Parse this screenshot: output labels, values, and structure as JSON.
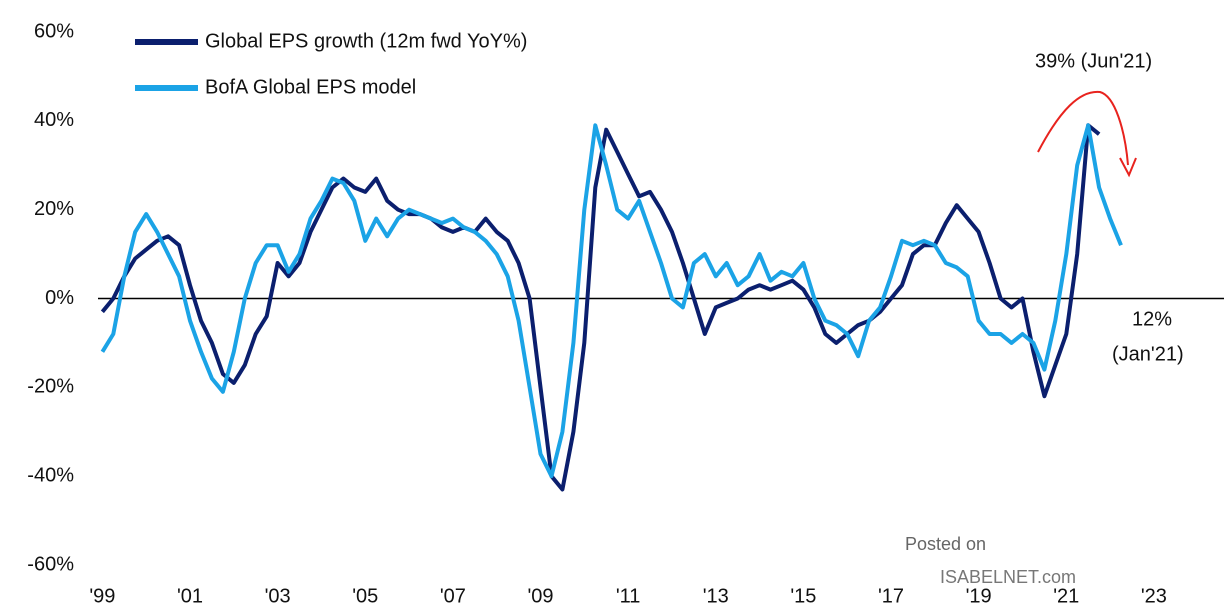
{
  "chart_data": {
    "type": "line",
    "x": [
      1999,
      1999.25,
      1999.5,
      1999.75,
      2000,
      2000.25,
      2000.5,
      2000.75,
      2001,
      2001.25,
      2001.5,
      2001.75,
      2002,
      2002.25,
      2002.5,
      2002.75,
      2003,
      2003.25,
      2003.5,
      2003.75,
      2004,
      2004.25,
      2004.5,
      2004.75,
      2005,
      2005.25,
      2005.5,
      2005.75,
      2006,
      2006.25,
      2006.5,
      2006.75,
      2007,
      2007.25,
      2007.5,
      2007.75,
      2008,
      2008.25,
      2008.5,
      2008.75,
      2009,
      2009.25,
      2009.5,
      2009.75,
      2010,
      2010.25,
      2010.5,
      2010.75,
      2011,
      2011.25,
      2011.5,
      2011.75,
      2012,
      2012.25,
      2012.5,
      2012.75,
      2013,
      2013.25,
      2013.5,
      2013.75,
      2014,
      2014.25,
      2014.5,
      2014.75,
      2015,
      2015.25,
      2015.5,
      2015.75,
      2016,
      2016.25,
      2016.5,
      2016.75,
      2017,
      2017.25,
      2017.5,
      2017.75,
      2018,
      2018.25,
      2018.5,
      2018.75,
      2019,
      2019.25,
      2019.5,
      2019.75,
      2020,
      2020.25,
      2020.5,
      2020.75,
      2021,
      2021.25,
      2021.5,
      2021.75,
      2022,
      2022.25
    ],
    "series": [
      {
        "name": "Global EPS growth (12m fwd YoY%)",
        "color": "#0b1f6e",
        "values": [
          -3,
          0,
          5,
          9,
          11,
          13,
          14,
          12,
          3,
          -5,
          -10,
          -17,
          -19,
          -15,
          -8,
          -4,
          8,
          5,
          8,
          15,
          20,
          25,
          27,
          25,
          24,
          27,
          22,
          20,
          19,
          19,
          18,
          16,
          15,
          16,
          15,
          18,
          15,
          13,
          8,
          0,
          -20,
          -40,
          -43,
          -30,
          -10,
          25,
          38,
          33,
          28,
          23,
          24,
          20,
          15,
          8,
          0,
          -8,
          -2,
          -1,
          0,
          2,
          3,
          2,
          3,
          4,
          2,
          -2,
          -8,
          -10,
          -8,
          -6,
          -5,
          -3,
          0,
          3,
          10,
          12,
          12,
          17,
          21,
          18,
          15,
          8,
          0,
          -2,
          0,
          -12,
          -22,
          -15,
          -8,
          10,
          39,
          37,
          null,
          null
        ]
      },
      {
        "name": "BofA Global EPS model",
        "color": "#1ba3e6",
        "values": [
          -12,
          -8,
          5,
          15,
          19,
          15,
          10,
          5,
          -5,
          -12,
          -18,
          -21,
          -12,
          0,
          8,
          12,
          12,
          6,
          10,
          18,
          22,
          27,
          26,
          22,
          13,
          18,
          14,
          18,
          20,
          19,
          18,
          17,
          18,
          16,
          15,
          13,
          10,
          5,
          -5,
          -20,
          -35,
          -40,
          -30,
          -10,
          20,
          39,
          30,
          20,
          18,
          22,
          15,
          8,
          0,
          -2,
          8,
          10,
          5,
          8,
          3,
          5,
          10,
          4,
          6,
          5,
          8,
          0,
          -5,
          -6,
          -8,
          -13,
          -5,
          -2,
          5,
          13,
          12,
          13,
          12,
          8,
          7,
          5,
          -5,
          -8,
          -8,
          -10,
          -8,
          -10,
          -16,
          -5,
          10,
          30,
          39,
          25,
          18,
          12
        ]
      }
    ],
    "xlim": [
      1998.9,
      2024.6
    ],
    "xticks": [
      {
        "value": 1999,
        "label": "'99"
      },
      {
        "value": 2001,
        "label": "'01"
      },
      {
        "value": 2003,
        "label": "'03"
      },
      {
        "value": 2005,
        "label": "'05"
      },
      {
        "value": 2007,
        "label": "'07"
      },
      {
        "value": 2009,
        "label": "'09"
      },
      {
        "value": 2011,
        "label": "'11"
      },
      {
        "value": 2013,
        "label": "'13"
      },
      {
        "value": 2015,
        "label": "'15"
      },
      {
        "value": 2017,
        "label": "'17"
      },
      {
        "value": 2019,
        "label": "'19"
      },
      {
        "value": 2021,
        "label": "'21"
      },
      {
        "value": 2023,
        "label": "'23"
      }
    ],
    "ylim": [
      -60,
      60
    ],
    "yticks": [
      {
        "value": -60,
        "label": "-60%"
      },
      {
        "value": -40,
        "label": "-40%"
      },
      {
        "value": -20,
        "label": "-20%"
      },
      {
        "value": 0,
        "label": "0%"
      },
      {
        "value": 20,
        "label": "20%"
      },
      {
        "value": 40,
        "label": "40%"
      },
      {
        "value": 60,
        "label": "60%"
      }
    ],
    "grid": false,
    "annotations": [
      "39% (Jun'21)",
      "12%",
      "(Jan'21)"
    ],
    "watermark": [
      "Posted on",
      "ISABELNET.com"
    ]
  }
}
